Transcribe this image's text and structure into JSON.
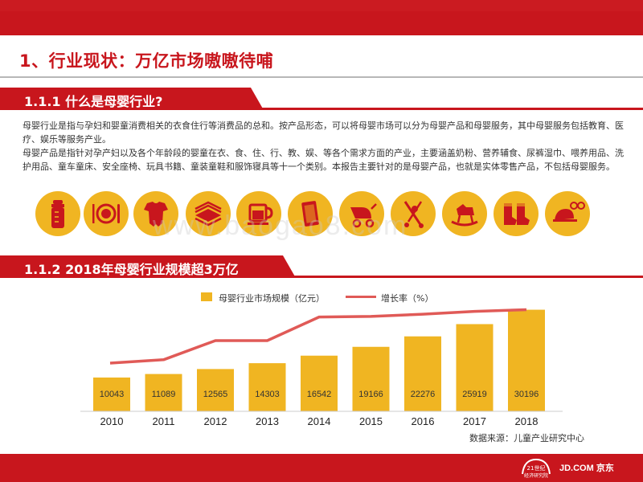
{
  "page": {
    "title": "1、行业现状：万亿市场嗷嗷待哺"
  },
  "section1": {
    "heading": "1.1.1 什么是母婴行业?",
    "paragraphs": [
      "母婴行业是指与孕妇和婴童消费相关的衣食住行等消费品的总和。按产品形态，可以将母婴市场可以分为母婴产品和母婴服务，其中母婴服务包括教育、医疗、娱乐等服务产业。",
      "母婴产品是指针对孕产妇以及各个年龄段的婴童在衣、食、住、行、教、娱、等各个需求方面的产业，主要涵盖奶粉、营养辅食、尿裤湿巾、喂养用品、洗护用品、童车童床、安全座椅、玩具书籍、童装童鞋和服饰寝具等十一个类别。本报告主要针对的是母婴产品，也就是实体零售产品，不包括母婴服务。"
    ],
    "icons": [
      "baby-bottle-icon",
      "plate-cutlery-icon",
      "onesie-icon",
      "stacked-diapers-icon",
      "cup-icon",
      "tablet-icon",
      "stroller-icon",
      "baby-swing-icon",
      "rocking-horse-icon",
      "baby-socks-icon",
      "hat-sunglasses-icon"
    ],
    "icon_color": "#f0b522"
  },
  "watermark": "www.baogao8.com",
  "section2": {
    "heading": "1.1.2 2018年母婴行业规模超3万亿",
    "legend_bar": "母婴行业市场规模（亿元）",
    "legend_line": "增长率（%）",
    "source": "数据来源：儿童产业研究中心"
  },
  "chart_data": {
    "type": "bar",
    "categories": [
      "2010",
      "2011",
      "2012",
      "2013",
      "2014",
      "2015",
      "2016",
      "2017",
      "2018"
    ],
    "series": [
      {
        "name": "母婴行业市场规模（亿元）",
        "type": "bar",
        "color": "#f0b522",
        "values": [
          10043,
          11089,
          12565,
          14303,
          16542,
          19166,
          22276,
          25919,
          30196
        ]
      },
      {
        "name": "增长率（%）",
        "type": "line",
        "color": "#e05a57",
        "values": [
          null,
          null,
          null,
          null,
          null,
          null,
          null,
          null,
          null
        ],
        "note_visual_trend_only": true
      }
    ],
    "line_shape": [
      0.0,
      0.06,
      0.4,
      0.4,
      0.82,
      0.83,
      0.87,
      0.92,
      0.95
    ],
    "ylim": [
      0,
      32000
    ],
    "title": "",
    "xlabel": "",
    "ylabel": ""
  },
  "footer": {
    "logo_21": "21世纪经济研究院",
    "logo_jd": "JD.COM 京东"
  },
  "colors": {
    "brand_red": "#c8161d",
    "accent_yellow": "#f0b522",
    "line_red": "#e05a57"
  }
}
